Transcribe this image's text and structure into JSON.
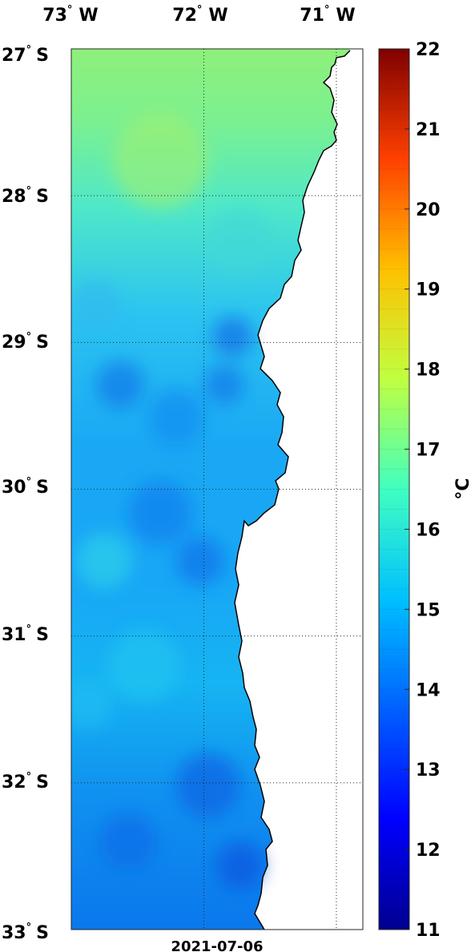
{
  "map": {
    "date": "2021-07-06",
    "lon_labels": [
      {
        "lon": -73,
        "text": "73",
        "hemi": "W"
      },
      {
        "lon": -72,
        "text": "72",
        "hemi": "W"
      },
      {
        "lon": -71,
        "text": "71",
        "hemi": "W"
      }
    ],
    "lat_labels": [
      {
        "lat": -27,
        "text": "27",
        "hemi": "S"
      },
      {
        "lat": -28,
        "text": "28",
        "hemi": "S"
      },
      {
        "lat": -29,
        "text": "29",
        "hemi": "S"
      },
      {
        "lat": -30,
        "text": "30",
        "hemi": "S"
      },
      {
        "lat": -31,
        "text": "31",
        "hemi": "S"
      },
      {
        "lat": -32,
        "text": "32",
        "hemi": "S"
      },
      {
        "lat": -33,
        "text": "33",
        "hemi": "S"
      }
    ],
    "degree_symbol": "°",
    "lon_range": [
      -73,
      -70.8
    ],
    "lat_range": [
      -33,
      -27
    ],
    "grid": true,
    "grid_style": "dotted"
  },
  "colorbar": {
    "unit": "°C",
    "ticks": [
      "11",
      "12",
      "13",
      "14",
      "15",
      "16",
      "17",
      "18",
      "19",
      "20",
      "21",
      "22"
    ],
    "range": [
      11,
      22
    ],
    "colormap": "jet",
    "colors": [
      "#00008f",
      "#0000ff",
      "#0080ff",
      "#00ffff",
      "#80ff80",
      "#ffff00",
      "#ff8000",
      "#ff0000",
      "#800000"
    ]
  },
  "legend_colors": {
    "land": "#ffffff",
    "coastline": "#000000",
    "frame": "#262626"
  }
}
